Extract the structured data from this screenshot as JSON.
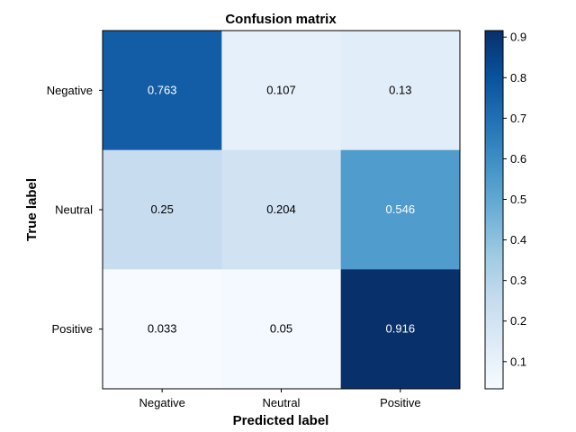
{
  "chart_data": {
    "type": "heatmap",
    "title": "Confusion matrix",
    "xlabel": "Predicted label",
    "ylabel": "True label",
    "x_categories": [
      "Negative",
      "Neutral",
      "Positive"
    ],
    "y_categories": [
      "Negative",
      "Neutral",
      "Positive"
    ],
    "values": [
      [
        0.763,
        0.107,
        0.13
      ],
      [
        0.25,
        0.204,
        0.546
      ],
      [
        0.033,
        0.05,
        0.916
      ]
    ],
    "colormap": "Blues",
    "colorbar": {
      "min": 0.033,
      "max": 0.916,
      "ticks": [
        "0.1",
        "0.2",
        "0.3",
        "0.4",
        "0.5",
        "0.6",
        "0.7",
        "0.8",
        "0.9"
      ]
    },
    "grid": false
  }
}
